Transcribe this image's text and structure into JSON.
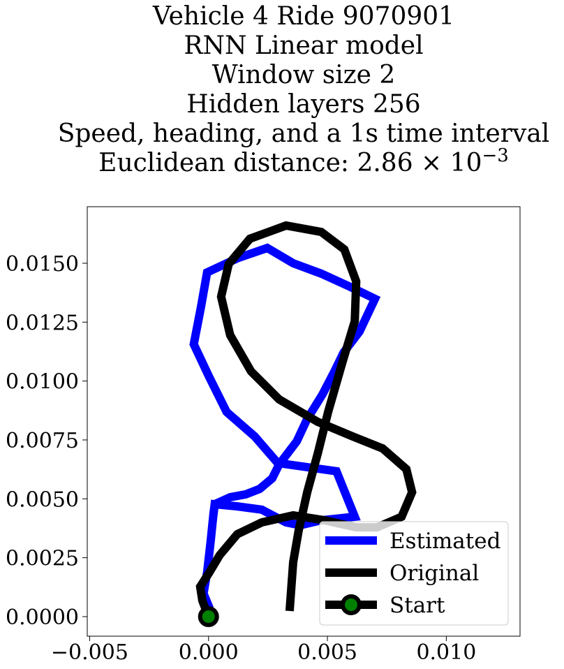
{
  "chart_data": {
    "type": "line",
    "title": [
      "Vehicle 4 Ride 9070901",
      "RNN Linear model",
      "Window size 2",
      "Hidden layers 256",
      "Speed, heading, and a 1s time interval",
      "Euclidean distance: 2.86 × 10"
    ],
    "title_exponent": "−3",
    "xlim": [
      -0.0051,
      0.0131
    ],
    "ylim": [
      -0.00083,
      0.0174
    ],
    "xticks": [
      {
        "value": -0.005,
        "label": "−0.005"
      },
      {
        "value": 0,
        "label": "0.000"
      },
      {
        "value": 0.005,
        "label": "0.005"
      },
      {
        "value": 0.01,
        "label": "0.010"
      }
    ],
    "yticks": [
      {
        "value": 0,
        "label": "0.0000"
      },
      {
        "value": 0.0025,
        "label": "0.0025"
      },
      {
        "value": 0.005,
        "label": "0.0050"
      },
      {
        "value": 0.0075,
        "label": "0.0075"
      },
      {
        "value": 0.01,
        "label": "0.0100"
      },
      {
        "value": 0.0125,
        "label": "0.0125"
      },
      {
        "value": 0.015,
        "label": "0.0150"
      }
    ],
    "legend": "lower right",
    "series": [
      {
        "name": "Estimated",
        "color": "#0000ff",
        "x": [
          0,
          3e-05,
          -0.00021,
          -6e-05,
          9e-05,
          0.00021,
          0.00026,
          0.00091,
          0.00156,
          0.00215,
          0.00268,
          0.00297,
          0.00371,
          0.00415,
          0.00479,
          0.00532,
          0.00568,
          0.00635,
          0.007,
          0.00591,
          0.00474,
          0.00356,
          0.00247,
          0.00121,
          -6e-05,
          -0.00032,
          -0.00062,
          3e-05,
          0.00076,
          0.00194,
          0.00291,
          0.00538,
          0.00615,
          0.00474,
          0.00385,
          0.00326,
          0.00224,
          0.00121,
          0.00026,
          0.00018
        ],
        "values": [
          0,
          0.00039,
          0.00098,
          0.00187,
          0.0032,
          0.00439,
          0.00477,
          0.00507,
          0.00519,
          0.00542,
          0.00587,
          0.00646,
          0.00744,
          0.00839,
          0.00943,
          0.01046,
          0.01121,
          0.0121,
          0.01349,
          0.01402,
          0.01456,
          0.015,
          0.01565,
          0.01521,
          0.01461,
          0.01313,
          0.01156,
          0.01017,
          0.00869,
          0.00765,
          0.00652,
          0.00617,
          0.00424,
          0.00409,
          0.00388,
          0.004,
          0.00454,
          0.00468,
          0.00477,
          0.00409
        ]
      },
      {
        "name": "Original",
        "color": "#000000",
        "x": [
          0,
          -0.00026,
          -0.00035,
          3e-05,
          0.00047,
          0.00121,
          0.00224,
          0.00356,
          0.00488,
          0.00621,
          0.00709,
          0.00812,
          0.00856,
          0.00832,
          0.00732,
          0.00606,
          0.00459,
          0.00297,
          0.00179,
          0.00091,
          0.00053,
          0.00085,
          0.00174,
          0.00326,
          0.00474,
          0.00571,
          0.00621,
          0.00615,
          0.00562,
          0.00503,
          0.00459,
          0.00415,
          0.00379,
          0.00356,
          0.00341
        ],
        "values": [
          0,
          0.00068,
          0.00127,
          0.00187,
          0.00261,
          0.0035,
          0.004,
          0.0043,
          0.00409,
          0.00379,
          0.00379,
          0.00424,
          0.00528,
          0.00626,
          0.00714,
          0.00765,
          0.00827,
          0.00922,
          0.01041,
          0.01195,
          0.01358,
          0.01497,
          0.01604,
          0.0166,
          0.01633,
          0.01559,
          0.01423,
          0.01254,
          0.01076,
          0.00869,
          0.00691,
          0.00528,
          0.00365,
          0.00231,
          0.00024
        ]
      },
      {
        "name": "Start",
        "color": "#000000",
        "marker_color": "#008000",
        "x": [
          0
        ],
        "values": [
          0
        ]
      }
    ]
  }
}
